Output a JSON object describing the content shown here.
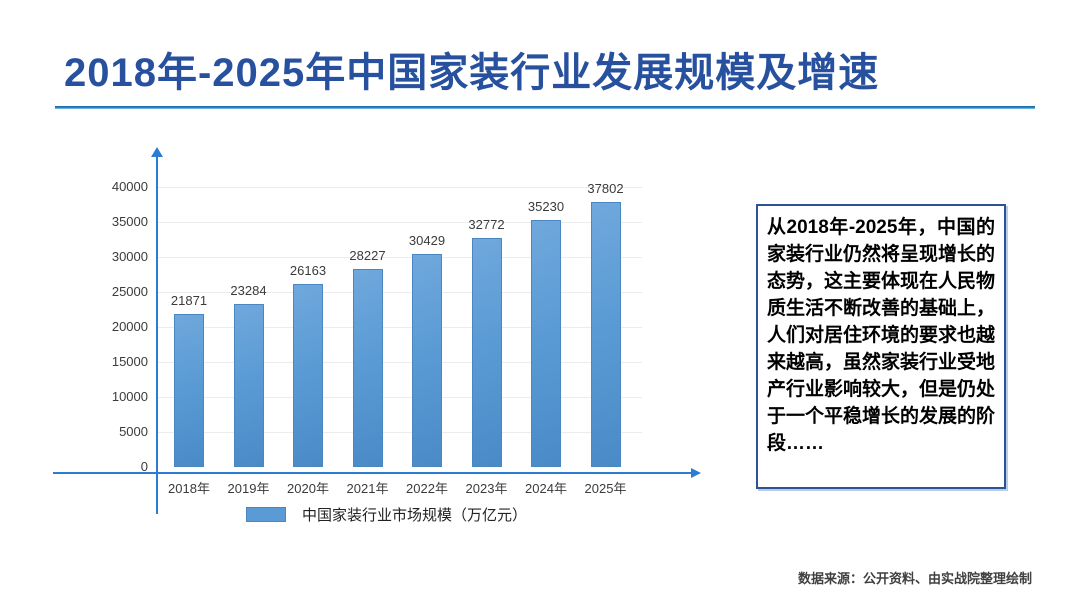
{
  "title": "2018年-2025年中国家装行业发展规模及增速",
  "chart_data": {
    "type": "bar",
    "title": "",
    "xlabel": "",
    "ylabel": "",
    "categories": [
      "2018年",
      "2019年",
      "2020年",
      "2021年",
      "2022年",
      "2023年",
      "2024年",
      "2025年"
    ],
    "values": [
      21871,
      23284,
      26163,
      28227,
      30429,
      32772,
      35230,
      37802
    ],
    "series_name": "中国家装行业市场规模（万亿元）",
    "ylim": [
      0,
      40000
    ],
    "yticks": [
      0,
      5000,
      10000,
      15000,
      20000,
      25000,
      30000,
      35000,
      40000
    ],
    "grid": true,
    "data_labels": true,
    "legend_position": "bottom",
    "bar_color": "#5b9bd5"
  },
  "legend": {
    "label": "中国家装行业市场规模（万亿元）"
  },
  "note": {
    "text": "从2018年-2025年，中国的家装行业仍然将呈现增长的态势，这主要体现在人民物质生活不断改善的基础上，人们对居住环境的要求也越来越高，虽然家装行业受地产行业影响较大，但是仍处于一个平稳增长的发展的阶段……"
  },
  "source": {
    "text": "数据来源：公开资料、由实战院整理绘制"
  },
  "colors": {
    "title": "#27509e",
    "axis": "#2b7cd3",
    "bar": "#5b9bd5",
    "gridline": "#ececec",
    "note_border": "#2e5395"
  }
}
